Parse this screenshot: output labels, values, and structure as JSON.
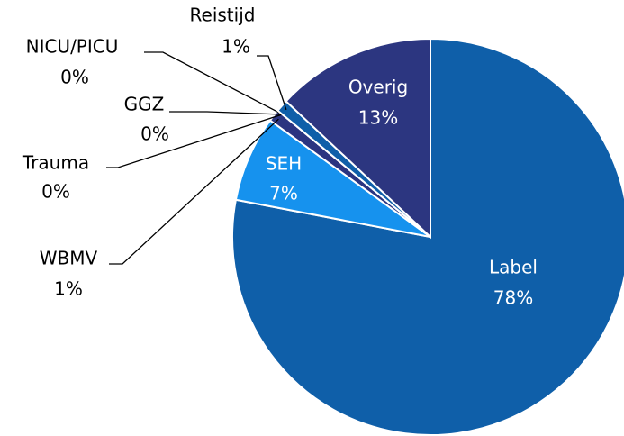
{
  "chart_data": {
    "type": "pie",
    "categories": [
      "Label",
      "SEH",
      "WBMV",
      "Trauma",
      "GGZ",
      "NICU/PICU",
      "Reistijd",
      "Overig"
    ],
    "values": [
      78,
      7,
      1,
      0,
      0,
      0,
      1,
      13
    ],
    "value_labels": [
      "78%",
      "7%",
      "1%",
      "0%",
      "0%",
      "0%",
      "1%",
      "13%"
    ],
    "colors": [
      "#0f5fa9",
      "#1692ee",
      "#2b3480",
      "#2b3480",
      "#2b3480",
      "#2b3480",
      "#0f5fa9",
      "#2c3680"
    ]
  }
}
